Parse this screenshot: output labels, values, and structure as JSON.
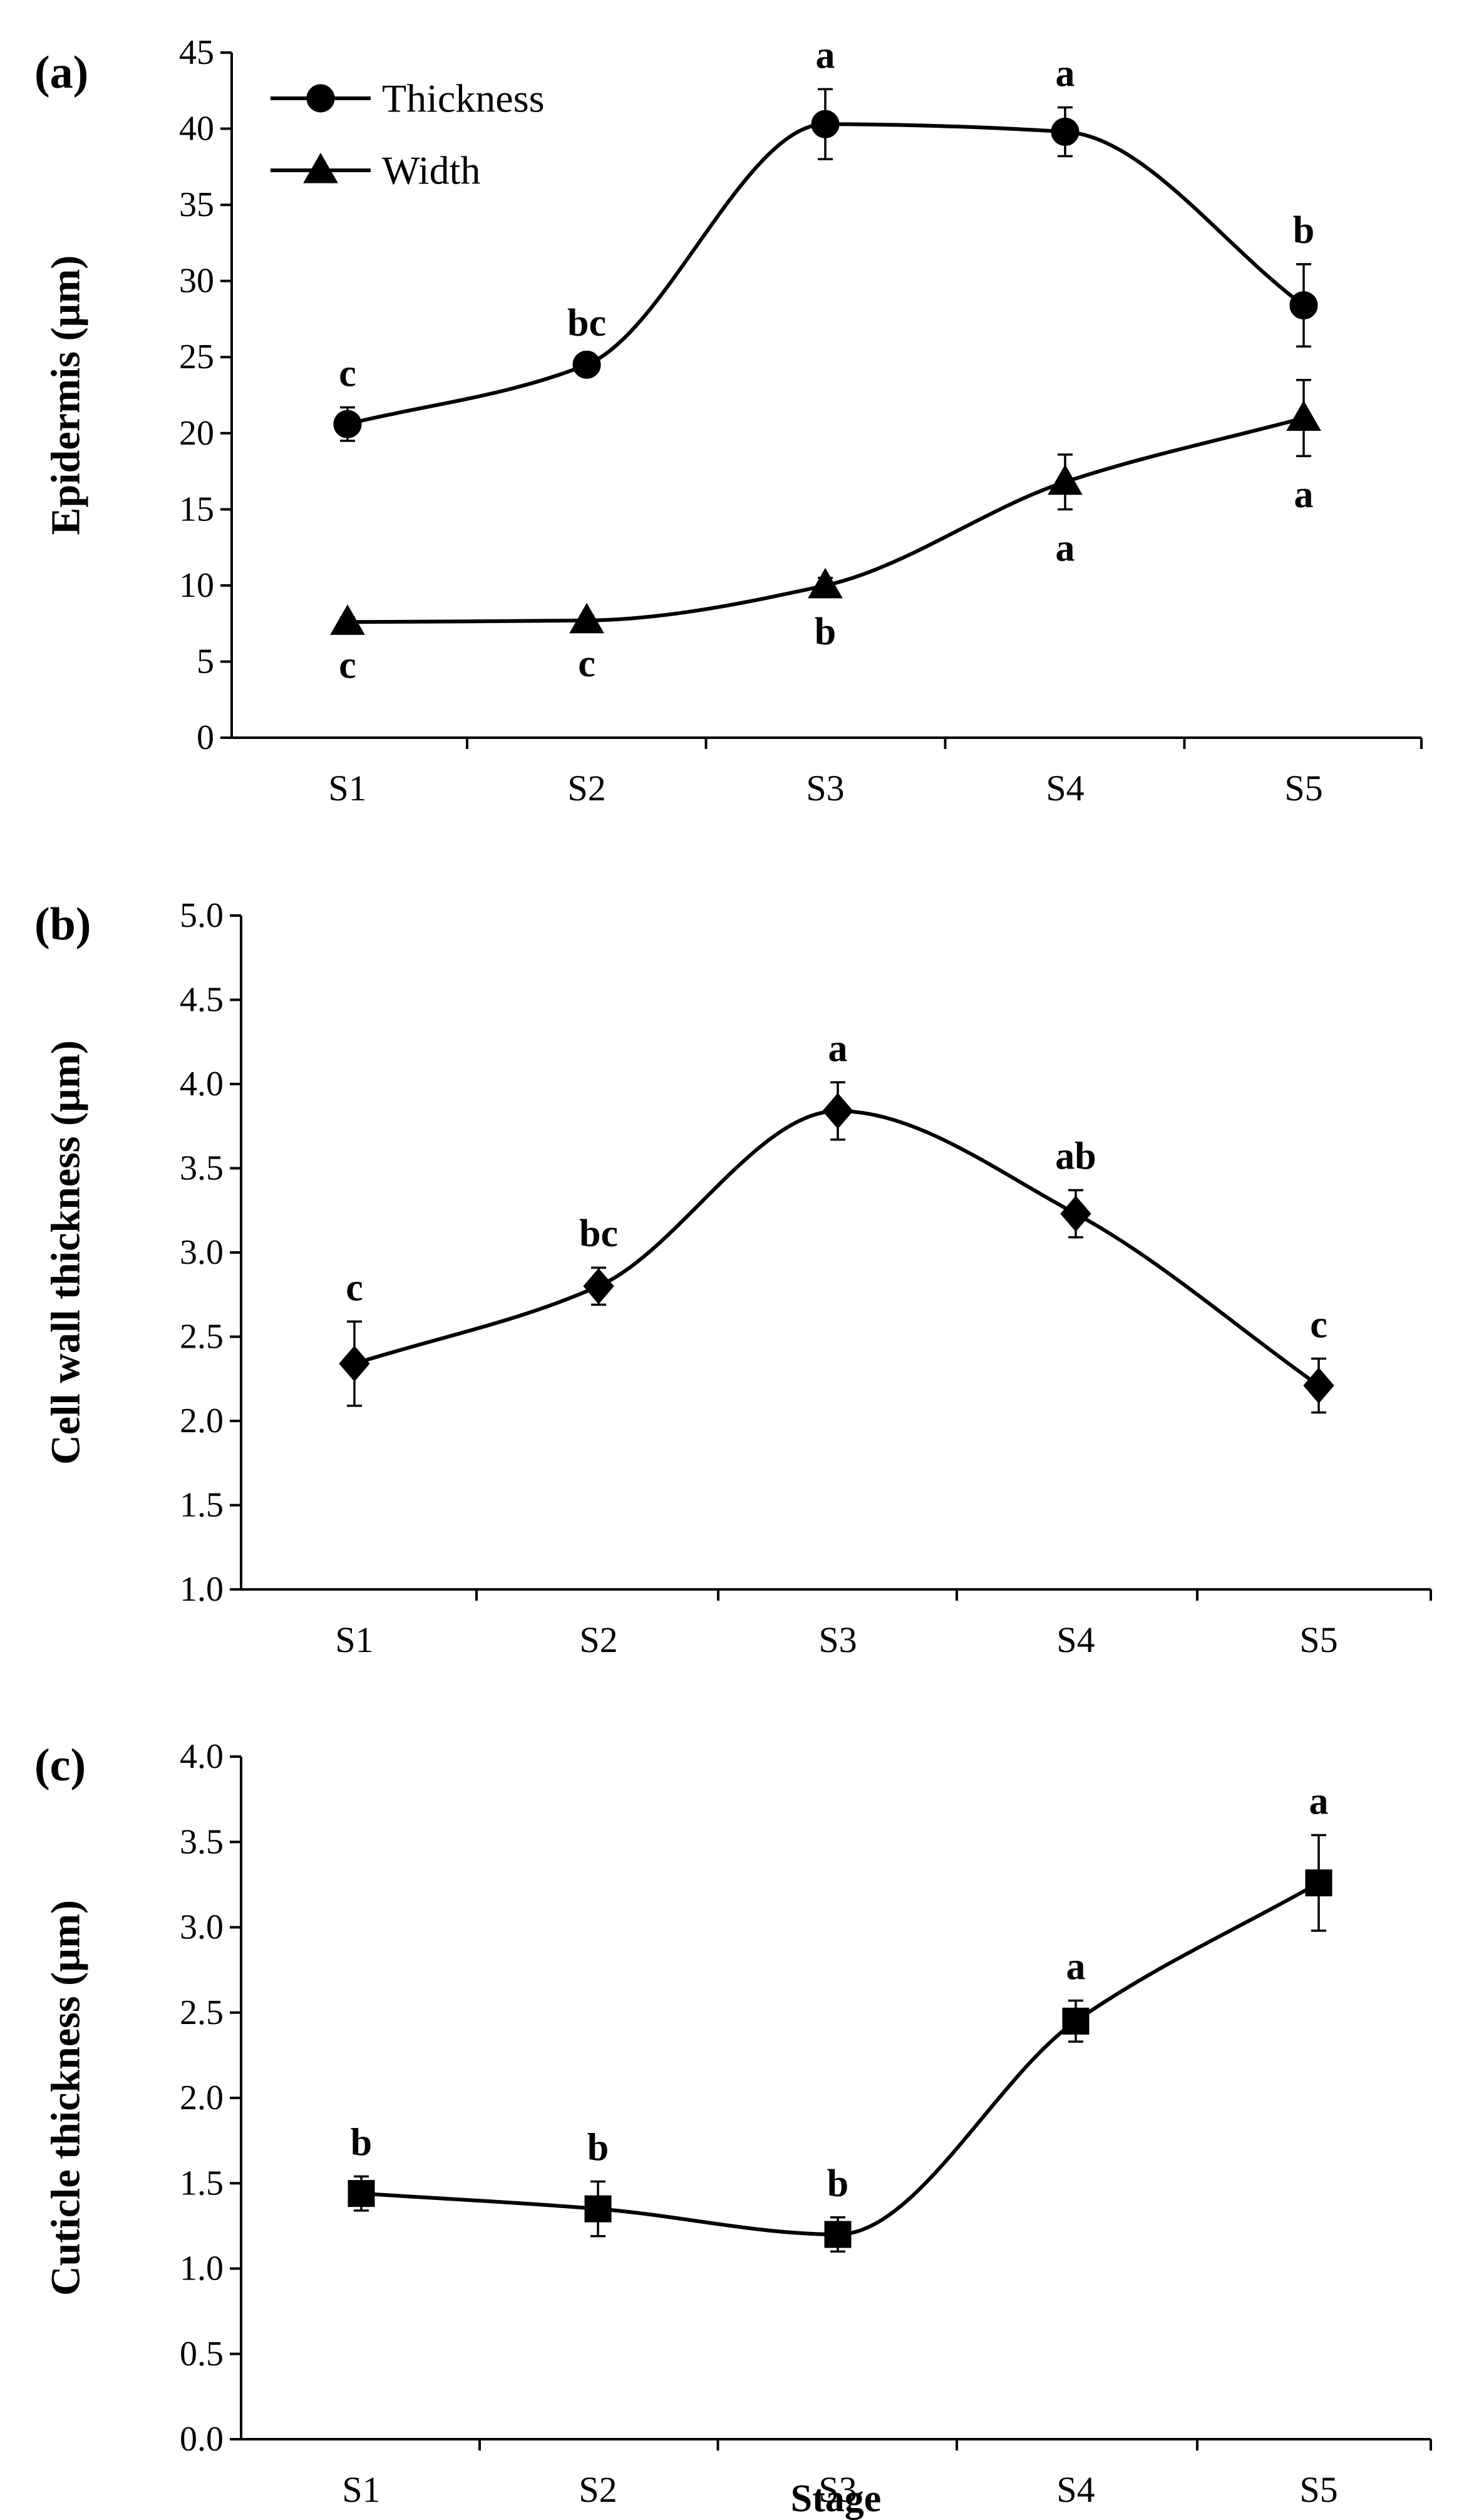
{
  "chart_data": [
    {
      "type": "line",
      "panel_label": "(a)",
      "title": "",
      "xlabel": "",
      "ylabel": "Epidermis (µm)",
      "ylim": [
        0,
        45
      ],
      "ytick_step": 5,
      "ytick_decimals": 0,
      "categories": [
        "S1",
        "S2",
        "S3",
        "S4",
        "S5"
      ],
      "legend": {
        "position": "top-left"
      },
      "series": [
        {
          "name": "Thickness",
          "marker": "circle",
          "values": [
            20.6,
            24.5,
            40.3,
            39.8,
            28.4
          ],
          "errors": [
            1.1,
            0.5,
            2.3,
            1.6,
            2.7
          ],
          "sig_letters": [
            "c",
            "bc",
            "a",
            "a",
            "b"
          ],
          "sig_position": "above"
        },
        {
          "name": "Width",
          "marker": "triangle",
          "values": [
            7.6,
            7.7,
            10.0,
            16.8,
            21.0
          ],
          "errors": [
            0.3,
            0.3,
            0.5,
            1.8,
            2.5
          ],
          "sig_letters": [
            "c",
            "c",
            "b",
            "a",
            "a"
          ],
          "sig_position": "below"
        }
      ]
    },
    {
      "type": "line",
      "panel_label": "(b)",
      "title": "",
      "xlabel": "",
      "ylabel": "Cell wall thickness (µm)",
      "ylim": [
        1.0,
        5.0
      ],
      "ytick_step": 0.5,
      "ytick_decimals": 1,
      "categories": [
        "S1",
        "S2",
        "S3",
        "S4",
        "S5"
      ],
      "series": [
        {
          "name": "Cell wall thickness",
          "marker": "diamond",
          "values": [
            2.34,
            2.8,
            3.84,
            3.23,
            2.21
          ],
          "errors": [
            0.25,
            0.11,
            0.17,
            0.14,
            0.16
          ],
          "sig_letters": [
            "c",
            "bc",
            "a",
            "ab",
            "c"
          ],
          "sig_position": "above"
        }
      ]
    },
    {
      "type": "line",
      "panel_label": "(c)",
      "title": "",
      "xlabel": "Stage",
      "ylabel": "Cuticle thickness (µm)",
      "ylim": [
        0.0,
        4.0
      ],
      "ytick_step": 0.5,
      "ytick_decimals": 1,
      "categories": [
        "S1",
        "S2",
        "S3",
        "S4",
        "S5"
      ],
      "series": [
        {
          "name": "Cuticle thickness",
          "marker": "square",
          "values": [
            1.44,
            1.35,
            1.2,
            2.45,
            3.26
          ],
          "errors": [
            0.1,
            0.16,
            0.1,
            0.12,
            0.28
          ],
          "sig_letters": [
            "b",
            "b",
            "b",
            "a",
            "a"
          ],
          "sig_position": "above"
        }
      ]
    }
  ]
}
